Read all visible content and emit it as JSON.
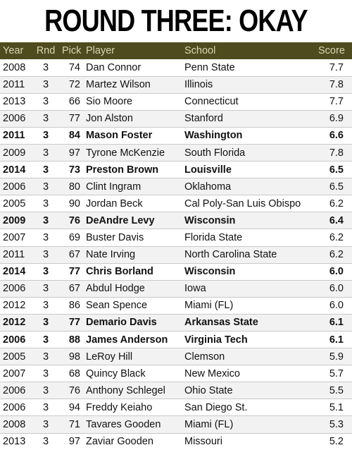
{
  "title": "ROUND THREE: OKAY",
  "colors": {
    "header_bg": "#4e4b1f",
    "header_text": "#d9d6b4"
  },
  "columns": {
    "year": "Year",
    "rnd": "Rnd",
    "pick": "Pick",
    "player": "Player",
    "school": "School",
    "score": "Score"
  },
  "rows": [
    {
      "year": "2008",
      "rnd": "3",
      "pick": "74",
      "player": "Dan Connor",
      "school": "Penn State",
      "score": "7.7",
      "bold": false
    },
    {
      "year": "2011",
      "rnd": "3",
      "pick": "72",
      "player": "Martez Wilson",
      "school": "Illinois",
      "score": "7.8",
      "bold": false
    },
    {
      "year": "2013",
      "rnd": "3",
      "pick": "66",
      "player": "Sio Moore",
      "school": "Connecticut",
      "score": "7.7",
      "bold": false
    },
    {
      "year": "2006",
      "rnd": "3",
      "pick": "77",
      "player": "Jon Alston",
      "school": "Stanford",
      "score": "6.9",
      "bold": false
    },
    {
      "year": "2011",
      "rnd": "3",
      "pick": "84",
      "player": "Mason Foster",
      "school": "Washington",
      "score": "6.6",
      "bold": true
    },
    {
      "year": "2009",
      "rnd": "3",
      "pick": "97",
      "player": "Tyrone McKenzie",
      "school": "South Florida",
      "score": "7.8",
      "bold": false
    },
    {
      "year": "2014",
      "rnd": "3",
      "pick": "73",
      "player": "Preston Brown",
      "school": "Louisville",
      "score": "6.5",
      "bold": true
    },
    {
      "year": "2006",
      "rnd": "3",
      "pick": "80",
      "player": "Clint Ingram",
      "school": "Oklahoma",
      "score": "6.5",
      "bold": false
    },
    {
      "year": "2005",
      "rnd": "3",
      "pick": "90",
      "player": "Jordan Beck",
      "school": "Cal Poly-San Luis Obispo",
      "score": "6.2",
      "bold": false
    },
    {
      "year": "2009",
      "rnd": "3",
      "pick": "76",
      "player": "DeAndre Levy",
      "school": "Wisconsin",
      "score": "6.4",
      "bold": true
    },
    {
      "year": "2007",
      "rnd": "3",
      "pick": "69",
      "player": "Buster Davis",
      "school": "Florida State",
      "score": "6.2",
      "bold": false
    },
    {
      "year": "2011",
      "rnd": "3",
      "pick": "67",
      "player": "Nate Irving",
      "school": "North Carolina State",
      "score": "6.2",
      "bold": false
    },
    {
      "year": "2014",
      "rnd": "3",
      "pick": "77",
      "player": "Chris Borland",
      "school": "Wisconsin",
      "score": "6.0",
      "bold": true
    },
    {
      "year": "2006",
      "rnd": "3",
      "pick": "67",
      "player": "Abdul Hodge",
      "school": "Iowa",
      "score": "6.0",
      "bold": false
    },
    {
      "year": "2012",
      "rnd": "3",
      "pick": "86",
      "player": "Sean Spence",
      "school": "Miami (FL)",
      "score": "6.0",
      "bold": false
    },
    {
      "year": "2012",
      "rnd": "3",
      "pick": "77",
      "player": "Demario Davis",
      "school": "Arkansas State",
      "score": "6.1",
      "bold": true
    },
    {
      "year": "2006",
      "rnd": "3",
      "pick": "88",
      "player": "James Anderson",
      "school": "Virginia Tech",
      "score": "6.1",
      "bold": true
    },
    {
      "year": "2005",
      "rnd": "3",
      "pick": "98",
      "player": "LeRoy Hill",
      "school": "Clemson",
      "score": "5.9",
      "bold": false
    },
    {
      "year": "2007",
      "rnd": "3",
      "pick": "68",
      "player": "Quincy Black",
      "school": "New Mexico",
      "score": "5.7",
      "bold": false
    },
    {
      "year": "2006",
      "rnd": "3",
      "pick": "76",
      "player": "Anthony Schlegel",
      "school": "Ohio State",
      "score": "5.5",
      "bold": false
    },
    {
      "year": "2006",
      "rnd": "3",
      "pick": "94",
      "player": "Freddy Keiaho",
      "school": "San Diego St.",
      "score": "5.1",
      "bold": false
    },
    {
      "year": "2008",
      "rnd": "3",
      "pick": "71",
      "player": "Tavares Gooden",
      "school": "Miami (FL)",
      "score": "5.3",
      "bold": false
    },
    {
      "year": "2013",
      "rnd": "3",
      "pick": "97",
      "player": "Zaviar Gooden",
      "school": "Missouri",
      "score": "5.2",
      "bold": false
    }
  ]
}
